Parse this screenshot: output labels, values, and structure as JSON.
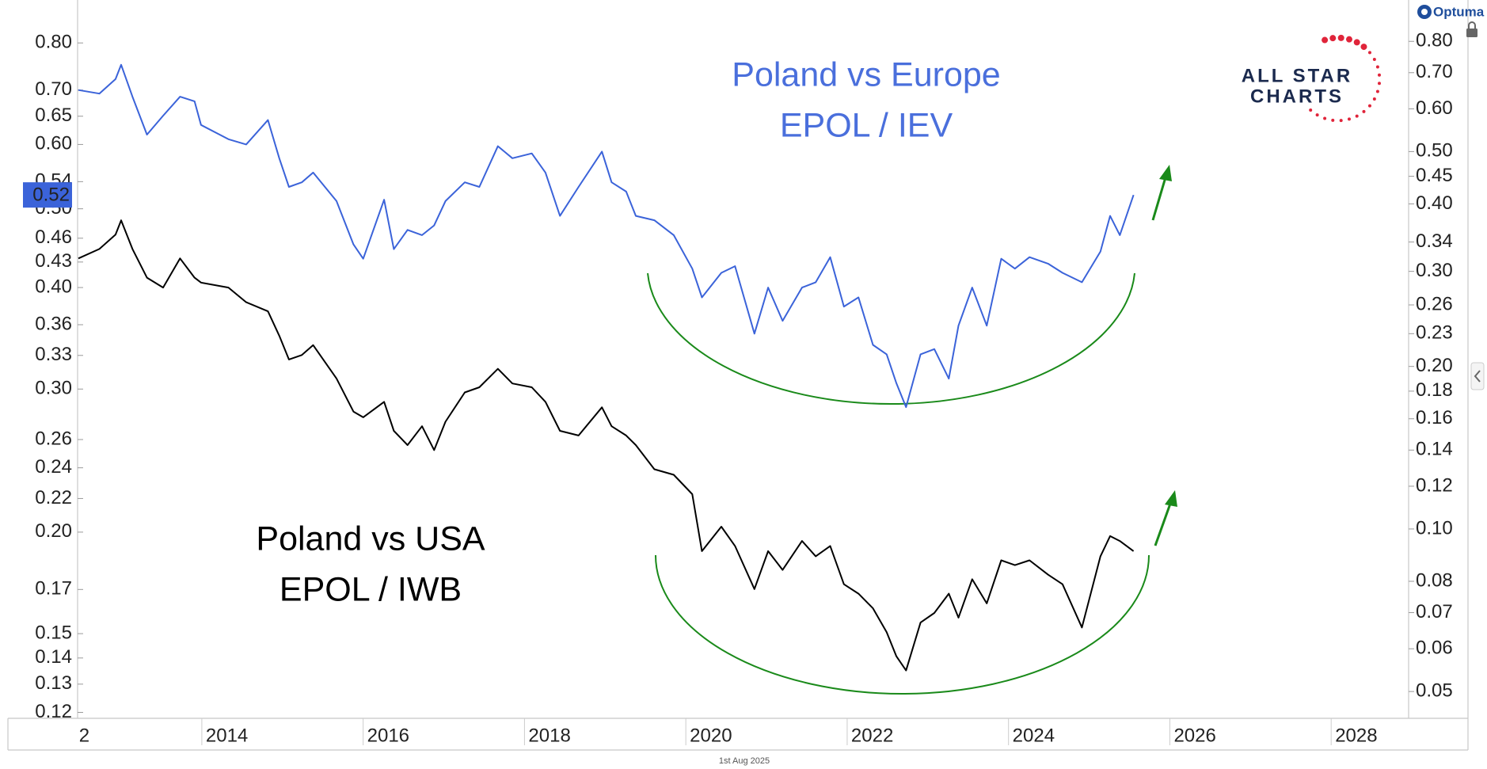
{
  "chart_data": {
    "type": "line",
    "log_scale": true,
    "brand": "Optuma",
    "logo": [
      "ALL STAR",
      "CHARTS"
    ],
    "annotations": [
      "Poland vs Europe",
      "EPOL / IEV",
      "Poland vs USA",
      "EPOL / IWB"
    ],
    "date_label": "1st Aug 2025",
    "x": [
      2012.47,
      2012.73,
      2012.93,
      2013.0,
      2013.14,
      2013.32,
      2013.52,
      2013.73,
      2013.91,
      2013.99,
      2014.33,
      2014.55,
      2014.82,
      2014.96,
      2015.08,
      2015.24,
      2015.38,
      2015.67,
      2015.88,
      2016.0,
      2016.26,
      2016.38,
      2016.55,
      2016.73,
      2016.88,
      2017.02,
      2017.26,
      2017.44,
      2017.67,
      2017.85,
      2018.09,
      2018.26,
      2018.44,
      2018.67,
      2018.96,
      2019.08,
      2019.26,
      2019.38,
      2019.61,
      2019.85,
      2020.08,
      2020.2,
      2020.44,
      2020.61,
      2020.85,
      2021.02,
      2021.2,
      2021.44,
      2021.61,
      2021.79,
      2021.96,
      2022.14,
      2022.32,
      2022.49,
      2022.61,
      2022.73,
      2022.91,
      2023.08,
      2023.26,
      2023.38,
      2023.55,
      2023.73,
      2023.91,
      2024.08,
      2024.26,
      2024.49,
      2024.67,
      2024.91,
      2025.14,
      2025.26,
      2025.38,
      2025.55
    ],
    "series": [
      {
        "color": "#3b63d9",
        "axis": "y",
        "values": [
          0.7,
          0.693,
          0.722,
          0.752,
          0.687,
          0.617,
          0.651,
          0.687,
          0.678,
          0.634,
          0.609,
          0.6,
          0.643,
          0.577,
          0.532,
          0.539,
          0.554,
          0.511,
          0.452,
          0.434,
          0.513,
          0.446,
          0.471,
          0.464,
          0.477,
          0.511,
          0.539,
          0.532,
          0.597,
          0.577,
          0.585,
          0.554,
          0.49,
          0.532,
          0.588,
          0.539,
          0.525,
          0.49,
          0.484,
          0.464,
          0.422,
          0.389,
          0.417,
          0.425,
          0.351,
          0.4,
          0.364,
          0.4,
          0.406,
          0.436,
          0.379,
          0.389,
          0.34,
          0.331,
          0.305,
          0.285,
          0.331,
          0.336,
          0.309,
          0.359,
          0.4,
          0.359,
          0.434,
          0.422,
          0.436,
          0.428,
          0.417,
          0.406,
          0.443,
          0.49,
          0.464,
          0.52
        ]
      },
      {
        "color": "#000000",
        "axis": "y2",
        "values": [
          0.317,
          0.33,
          0.351,
          0.373,
          0.33,
          0.292,
          0.28,
          0.317,
          0.292,
          0.286,
          0.28,
          0.263,
          0.253,
          0.228,
          0.206,
          0.21,
          0.219,
          0.19,
          0.165,
          0.161,
          0.172,
          0.152,
          0.143,
          0.155,
          0.14,
          0.158,
          0.179,
          0.183,
          0.198,
          0.186,
          0.183,
          0.172,
          0.152,
          0.149,
          0.168,
          0.155,
          0.149,
          0.143,
          0.129,
          0.126,
          0.116,
          0.091,
          0.101,
          0.093,
          0.0774,
          0.091,
          0.084,
          0.095,
          0.089,
          0.093,
          0.079,
          0.0759,
          0.0713,
          0.0644,
          0.0581,
          0.0547,
          0.0671,
          0.0699,
          0.0759,
          0.0685,
          0.0807,
          0.0728,
          0.0875,
          0.0857,
          0.0875,
          0.0823,
          0.079,
          0.0657,
          0.089,
          0.097,
          0.095,
          0.091
        ]
      }
    ],
    "xlim": [
      2012.46,
      2028.96
    ],
    "xticks": [
      {
        "value": 2012,
        "label": "2"
      },
      2014,
      2016,
      2018,
      2020,
      2022,
      2024,
      2026,
      2028
    ],
    "ylim": [
      0.118,
      0.86
    ],
    "yticks": [
      {
        "value": 0.8,
        "label": "0.80"
      },
      {
        "value": 0.7,
        "label": "0.70"
      },
      0.65,
      {
        "value": 0.6,
        "label": "0.60"
      },
      0.54,
      {
        "value": 0.5,
        "label": "0.50"
      },
      0.46,
      0.43,
      {
        "value": 0.4,
        "label": "0.40"
      },
      0.36,
      0.33,
      {
        "value": 0.3,
        "label": "0.30"
      },
      0.26,
      0.24,
      0.22,
      {
        "value": 0.2,
        "label": "0.20"
      },
      0.17,
      0.15,
      0.14,
      0.13,
      0.12
    ],
    "y2lim": [
      0.0446,
      0.886
    ],
    "y2ticks": [
      {
        "value": 0.8,
        "label": "0.80"
      },
      {
        "value": 0.7,
        "label": "0.70"
      },
      {
        "value": 0.6,
        "label": "0.60"
      },
      {
        "value": 0.5,
        "label": "0.50"
      },
      0.45,
      {
        "value": 0.4,
        "label": "0.40"
      },
      0.34,
      {
        "value": 0.3,
        "label": "0.30"
      },
      0.26,
      0.23,
      {
        "value": 0.2,
        "label": "0.20"
      },
      0.18,
      0.16,
      0.14,
      0.12,
      {
        "value": 0.1,
        "label": "0.10"
      },
      {
        "value": 0.08,
        "label": "0.08"
      },
      {
        "value": 0.07,
        "label": "0.07"
      },
      {
        "value": 0.06,
        "label": "0.06"
      },
      {
        "value": 0.05,
        "label": "0.05"
      }
    ],
    "grid": false
  }
}
